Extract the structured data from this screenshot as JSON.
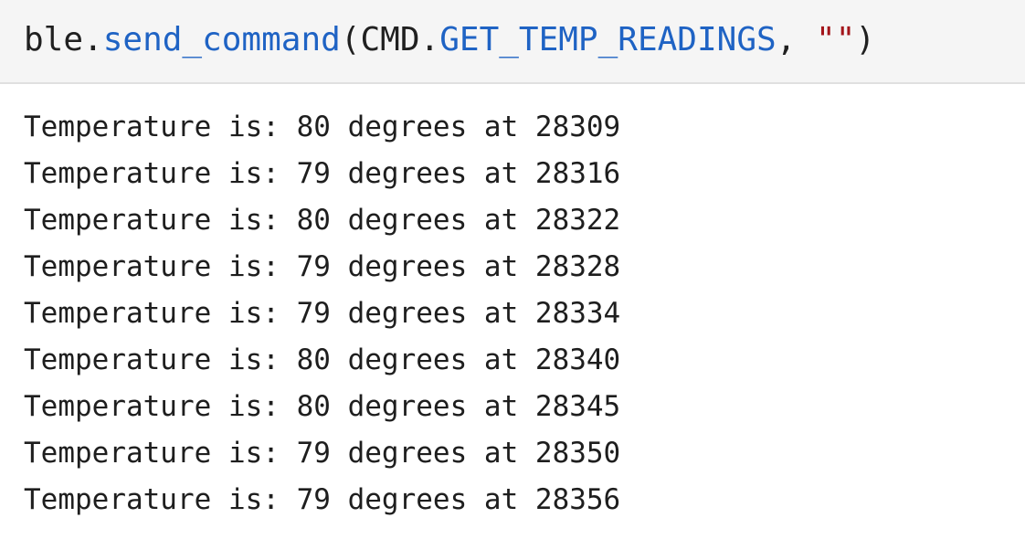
{
  "code_cell": {
    "tokens": {
      "object": "ble",
      "dot1": ".",
      "method": "send_command",
      "paren_open": "(",
      "module": "CMD",
      "dot2": ".",
      "constant": "GET_TEMP_READINGS",
      "comma": ", ",
      "string": "\"\"",
      "paren_close": ")"
    }
  },
  "output": {
    "lines": [
      "Temperature is: 80 degrees at 28309",
      "Temperature is: 79 degrees at 28316",
      "Temperature is: 80 degrees at 28322",
      "Temperature is: 79 degrees at 28328",
      "Temperature is: 79 degrees at 28334",
      "Temperature is: 80 degrees at 28340",
      "Temperature is: 80 degrees at 28345",
      "Temperature is: 79 degrees at 28350",
      "Temperature is: 79 degrees at 28356"
    ]
  },
  "colors": {
    "code_background": "#f5f5f5",
    "function_blue": "#1f63c4",
    "string_red": "#a3151a",
    "text": "#202020"
  }
}
